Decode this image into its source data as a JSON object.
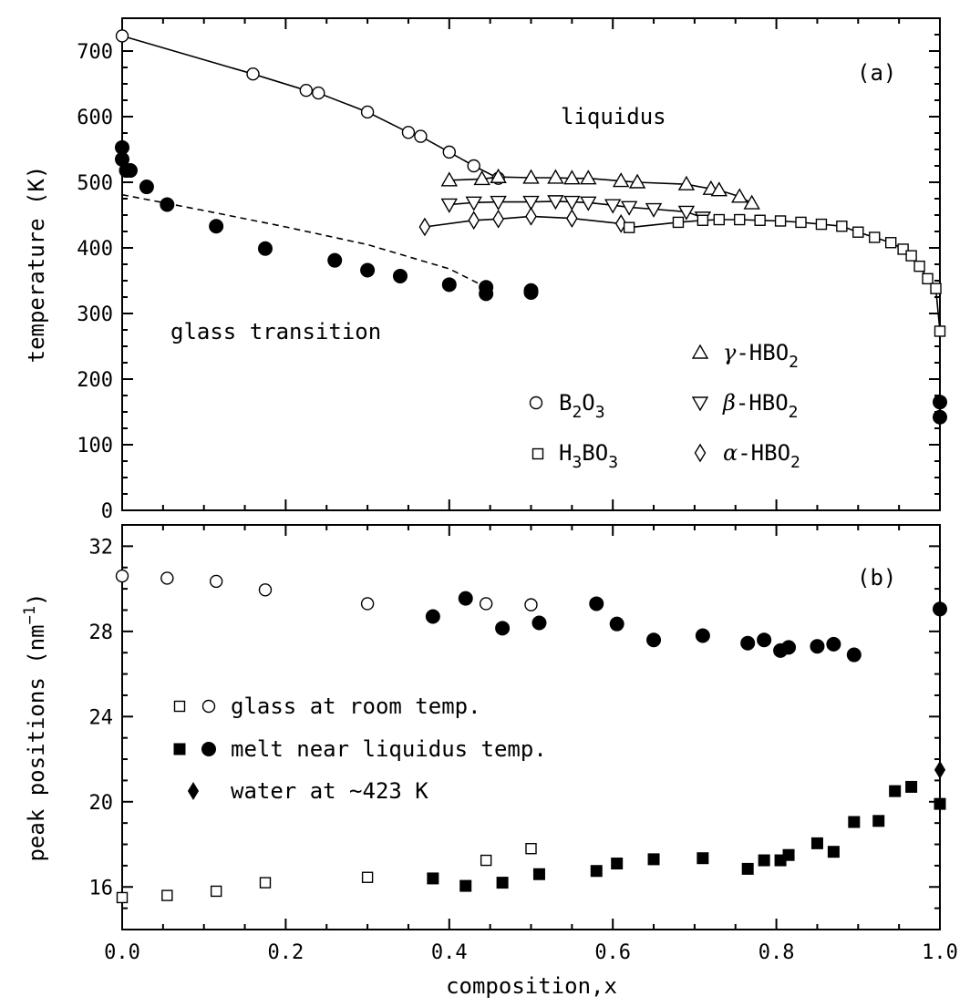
{
  "chart_data": [
    {
      "type": "scatter",
      "panel_label": "(a)",
      "ylabel": "temperature (K)",
      "xlim": [
        0,
        1
      ],
      "ylim": [
        0,
        750
      ],
      "xticks": [
        "0.0",
        "0.2",
        "0.4",
        "0.6",
        "0.8",
        "1.0"
      ],
      "yticks": [
        "0",
        "100",
        "200",
        "300",
        "400",
        "500",
        "600",
        "700"
      ],
      "annotations": [
        "liquidus",
        "glass transition"
      ],
      "legend": [
        {
          "marker": "circle-open",
          "label": "B2O3",
          "main": "B",
          "sub1": "2",
          "mid": "O",
          "sub2": "3"
        },
        {
          "marker": "square-open",
          "label": "H3BO3",
          "main": "H",
          "sub1": "3",
          "mid": "BO",
          "sub2": "3"
        },
        {
          "marker": "triangle-up-open",
          "label": "γ-HBO2",
          "greek": "γ",
          "main": "-HBO",
          "sub1": "2"
        },
        {
          "marker": "triangle-down-open",
          "label": "β-HBO2",
          "greek": "β",
          "main": "-HBO",
          "sub1": "2"
        },
        {
          "marker": "diamond-open",
          "label": "α-HBO2",
          "greek": "α",
          "main": "-HBO",
          "sub1": "2"
        }
      ],
      "series": [
        {
          "name": "B2O3",
          "marker": "circle-open",
          "line": "solid",
          "x": [
            0.0,
            0.16,
            0.225,
            0.24,
            0.3,
            0.35,
            0.365,
            0.4,
            0.43,
            0.46
          ],
          "y": [
            723,
            665,
            640,
            636,
            607,
            576,
            570,
            546,
            525,
            506
          ]
        },
        {
          "name": "γ-HBO2",
          "marker": "triangle-up-open",
          "line": "solid",
          "x": [
            0.4,
            0.44,
            0.46,
            0.5,
            0.53,
            0.55,
            0.57,
            0.61,
            0.63,
            0.69,
            0.72,
            0.73,
            0.755,
            0.77
          ],
          "y": [
            503,
            505,
            508,
            507,
            507,
            506,
            506,
            502,
            500,
            497,
            490,
            488,
            478,
            468
          ]
        },
        {
          "name": "β-HBO2",
          "marker": "triangle-down-open",
          "line": "solid",
          "x": [
            0.4,
            0.43,
            0.46,
            0.5,
            0.53,
            0.55,
            0.57,
            0.6,
            0.62,
            0.65,
            0.69,
            0.71
          ],
          "y": [
            466,
            469,
            470,
            470,
            471,
            470,
            469,
            465,
            462,
            459,
            455,
            446
          ]
        },
        {
          "name": "α-HBO2",
          "marker": "diamond-open",
          "line": "solid",
          "x": [
            0.37,
            0.43,
            0.46,
            0.5,
            0.55,
            0.61
          ],
          "y": [
            432,
            442,
            444,
            448,
            445,
            437
          ]
        },
        {
          "name": "H3BO3",
          "marker": "square-open",
          "line": "solid",
          "x": [
            0.62,
            0.68,
            0.71,
            0.73,
            0.755,
            0.78,
            0.805,
            0.83,
            0.855,
            0.88,
            0.9,
            0.92,
            0.94,
            0.955,
            0.965,
            0.975,
            0.985,
            0.995,
            1.0
          ],
          "y": [
            431,
            439,
            442,
            443,
            443,
            442,
            441,
            439,
            436,
            433,
            424,
            416,
            408,
            398,
            388,
            372,
            353,
            338,
            273
          ]
        },
        {
          "name": "glass transition",
          "marker": "circle-filled",
          "line": "none",
          "x": [
            0.0,
            0.0,
            0.005,
            0.01,
            0.03,
            0.055,
            0.115,
            0.175,
            0.26,
            0.3,
            0.34,
            0.4,
            0.445,
            0.445,
            0.5,
            0.5,
            1.0,
            1.0
          ],
          "y": [
            553,
            535,
            518,
            518,
            493,
            466,
            433,
            399,
            381,
            366,
            357,
            344,
            340,
            330,
            335,
            332,
            165,
            142
          ]
        },
        {
          "name": "glass transition trend",
          "marker": "none",
          "line": "dashed",
          "x": [
            0.0,
            0.1,
            0.2,
            0.3,
            0.4,
            0.45
          ],
          "y": [
            481,
            457,
            432,
            405,
            368,
            337
          ]
        }
      ]
    },
    {
      "type": "scatter",
      "panel_label": "(b)",
      "ylabel_main": "peak positions (nm",
      "ylabel_sup": "−1",
      "ylabel_close": ")",
      "ylabel": "peak positions (nm−1)",
      "xlabel": "composition,x",
      "xlim": [
        0,
        1
      ],
      "ylim": [
        14,
        33
      ],
      "xticks": [
        "0.0",
        "0.2",
        "0.4",
        "0.6",
        "0.8",
        "1.0"
      ],
      "yticks": [
        "16",
        "20",
        "24",
        "28",
        "32"
      ],
      "legend": [
        {
          "markers": [
            "square-open",
            "circle-open"
          ],
          "label": "glass at room temp."
        },
        {
          "markers": [
            "square-filled",
            "circle-filled"
          ],
          "label": "melt near liquidus temp."
        },
        {
          "markers": [
            "diamond-filled"
          ],
          "label": "water at ~423 K"
        }
      ],
      "series": [
        {
          "name": "glass at room temp. (open circles)",
          "marker": "circle-open",
          "x": [
            0.0,
            0.055,
            0.115,
            0.175,
            0.3,
            0.445,
            0.5
          ],
          "y": [
            30.6,
            30.5,
            30.35,
            29.95,
            29.3,
            29.3,
            29.25
          ]
        },
        {
          "name": "melt near liquidus temp. (filled circles)",
          "marker": "circle-filled",
          "x": [
            0.38,
            0.42,
            0.465,
            0.51,
            0.58,
            0.605,
            0.65,
            0.71,
            0.765,
            0.785,
            0.805,
            0.815,
            0.85,
            0.87,
            0.895,
            1.0
          ],
          "y": [
            28.7,
            29.55,
            28.15,
            28.4,
            29.3,
            28.35,
            27.6,
            27.8,
            27.45,
            27.6,
            27.1,
            27.25,
            27.3,
            27.4,
            26.9,
            29.05
          ]
        },
        {
          "name": "glass at room temp. (open squares)",
          "marker": "square-open",
          "x": [
            0.0,
            0.055,
            0.115,
            0.175,
            0.3,
            0.445,
            0.5
          ],
          "y": [
            15.5,
            15.6,
            15.8,
            16.2,
            16.45,
            17.25,
            17.8
          ]
        },
        {
          "name": "melt near liquidus temp. (filled squares)",
          "marker": "square-filled",
          "x": [
            0.38,
            0.42,
            0.465,
            0.51,
            0.58,
            0.605,
            0.65,
            0.71,
            0.765,
            0.785,
            0.805,
            0.815,
            0.85,
            0.87,
            0.895,
            0.925,
            0.945,
            0.965,
            1.0
          ],
          "y": [
            16.4,
            16.05,
            16.2,
            16.6,
            16.75,
            17.1,
            17.3,
            17.35,
            16.85,
            17.25,
            17.25,
            17.5,
            18.05,
            17.65,
            19.05,
            19.1,
            20.5,
            20.7,
            19.9
          ]
        },
        {
          "name": "water at ~423 K",
          "marker": "diamond-filled",
          "x": [
            1.0
          ],
          "y": [
            21.5
          ]
        }
      ]
    }
  ]
}
